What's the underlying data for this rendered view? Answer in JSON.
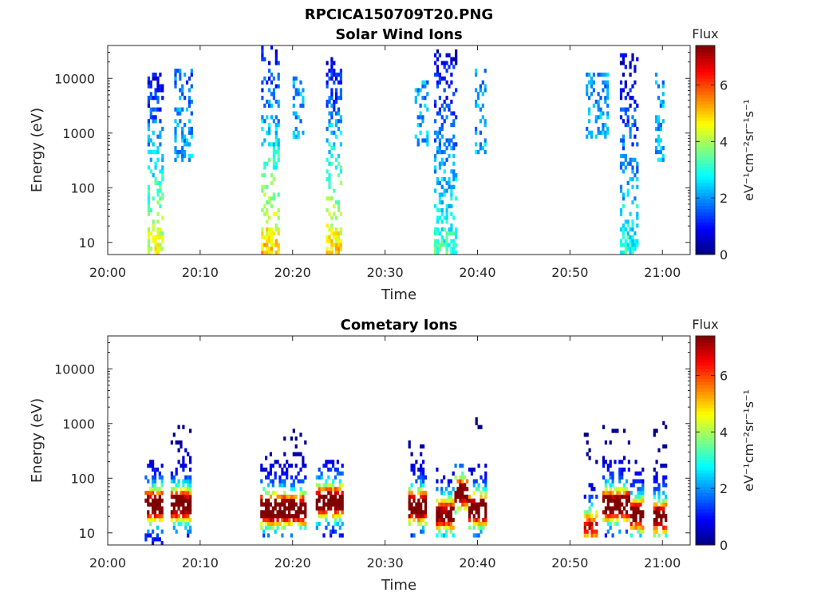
{
  "figure_title": "RPCICA150709T20.PNG",
  "chart_data": [
    {
      "type": "heatmap",
      "title": "Solar Wind Ions",
      "xlabel": "Time",
      "ylabel": "Energy (eV)",
      "x_range_minutes": [
        0,
        63
      ],
      "x_ticks": [
        {
          "label": "20:00",
          "value": 0
        },
        {
          "label": "20:10",
          "value": 10
        },
        {
          "label": "20:20",
          "value": 20
        },
        {
          "label": "20:30",
          "value": 30
        },
        {
          "label": "20:40",
          "value": 40
        },
        {
          "label": "20:50",
          "value": 50
        },
        {
          "label": "21:00",
          "value": 60
        }
      ],
      "y_scale": "log",
      "ylim": [
        6,
        40000
      ],
      "y_ticks": [
        {
          "label": "10",
          "value": 10
        },
        {
          "label": "100",
          "value": 100
        },
        {
          "label": "1000",
          "value": 1000
        },
        {
          "label": "10000",
          "value": 10000
        }
      ],
      "colorbar": {
        "title": "Flux",
        "unit": "eV⁻¹cm⁻²sr⁻¹s⁻¹",
        "range": [
          0,
          7.4
        ],
        "ticks": [
          "0",
          "2",
          "4",
          "6"
        ],
        "colormap": "jet"
      },
      "bursts": [
        {
          "t0": 4.3,
          "t1": 6.0,
          "e_min": 6,
          "e_max": 12000,
          "value_low": 4.5,
          "value_high": 0.6
        },
        {
          "t0": 7.2,
          "t1": 9.0,
          "e_min": 300,
          "e_max": 15000,
          "value_low": 2.2,
          "value_high": 1.6
        },
        {
          "t0": 16.6,
          "t1": 18.6,
          "e_min": 6,
          "e_max": 40000,
          "value_low": 5.0,
          "value_high": 0.6
        },
        {
          "t0": 20.0,
          "t1": 21.2,
          "e_min": 700,
          "e_max": 10000,
          "value_low": 2.2,
          "value_high": 2.0
        },
        {
          "t0": 23.6,
          "t1": 25.2,
          "e_min": 6,
          "e_max": 22000,
          "value_low": 5.0,
          "value_high": 0.6
        },
        {
          "t0": 33.2,
          "t1": 34.6,
          "e_min": 500,
          "e_max": 8000,
          "value_low": 2.2,
          "value_high": 2.0
        },
        {
          "t0": 35.3,
          "t1": 37.8,
          "e_min": 6,
          "e_max": 30000,
          "value_low": 3.2,
          "value_high": 0.6
        },
        {
          "t0": 39.7,
          "t1": 40.8,
          "e_min": 400,
          "e_max": 15000,
          "value_low": 2.2,
          "value_high": 2.0
        },
        {
          "t0": 51.7,
          "t1": 54.0,
          "e_min": 700,
          "e_max": 12000,
          "value_low": 2.2,
          "value_high": 2.0
        },
        {
          "t0": 55.4,
          "t1": 57.2,
          "e_min": 6,
          "e_max": 25000,
          "value_low": 3.0,
          "value_high": 0.6
        },
        {
          "t0": 59.2,
          "t1": 60.1,
          "e_min": 300,
          "e_max": 12000,
          "value_low": 2.2,
          "value_high": 2.0
        }
      ]
    },
    {
      "type": "heatmap",
      "title": "Cometary Ions",
      "xlabel": "Time",
      "ylabel": "Energy (eV)",
      "x_range_minutes": [
        0,
        63
      ],
      "x_ticks": [
        {
          "label": "20:00",
          "value": 0
        },
        {
          "label": "20:10",
          "value": 10
        },
        {
          "label": "20:20",
          "value": 20
        },
        {
          "label": "20:30",
          "value": 30
        },
        {
          "label": "20:40",
          "value": 40
        },
        {
          "label": "20:50",
          "value": 50
        },
        {
          "label": "21:00",
          "value": 60
        }
      ],
      "y_scale": "log",
      "ylim": [
        6,
        40000
      ],
      "y_ticks": [
        {
          "label": "10",
          "value": 10
        },
        {
          "label": "100",
          "value": 100
        },
        {
          "label": "1000",
          "value": 1000
        },
        {
          "label": "10000",
          "value": 10000
        }
      ],
      "colorbar": {
        "title": "Flux",
        "unit": "eV⁻¹cm⁻²sr⁻¹s⁻¹",
        "range": [
          0,
          7.4
        ],
        "ticks": [
          "0",
          "2",
          "4",
          "6"
        ],
        "colormap": "jet"
      },
      "bursts": [
        {
          "t0": 4.0,
          "t1": 6.0,
          "e_min": 6,
          "e_max": 200,
          "peak_energy": 30,
          "peak_value": 7.0
        },
        {
          "t0": 6.8,
          "t1": 9.0,
          "e_min": 8,
          "e_max": 1000,
          "peak_energy": 30,
          "peak_value": 6.8
        },
        {
          "t0": 16.5,
          "t1": 19.0,
          "e_min": 8,
          "e_max": 300,
          "peak_energy": 25,
          "peak_value": 7.2
        },
        {
          "t0": 19.0,
          "t1": 21.5,
          "e_min": 8,
          "e_max": 900,
          "peak_energy": 25,
          "peak_value": 7.2
        },
        {
          "t0": 22.5,
          "t1": 25.5,
          "e_min": 8,
          "e_max": 200,
          "peak_energy": 35,
          "peak_value": 6.8
        },
        {
          "t0": 32.5,
          "t1": 34.5,
          "e_min": 8,
          "e_max": 500,
          "peak_energy": 28,
          "peak_value": 7.0
        },
        {
          "t0": 35.5,
          "t1": 37.5,
          "e_min": 8,
          "e_max": 150,
          "peak_energy": 20,
          "peak_value": 6.0
        },
        {
          "t0": 37.5,
          "t1": 39.0,
          "e_min": 20,
          "e_max": 180,
          "peak_energy": 50,
          "peak_value": 6.5
        },
        {
          "t0": 39.0,
          "t1": 41.0,
          "e_min": 8,
          "e_max": 1300,
          "peak_energy": 25,
          "peak_value": 7.0
        },
        {
          "t0": 51.5,
          "t1": 53.0,
          "e_min": 8,
          "e_max": 1000,
          "peak_energy": 12,
          "peak_value": 5.0
        },
        {
          "t0": 53.5,
          "t1": 56.5,
          "e_min": 8,
          "e_max": 900,
          "peak_energy": 30,
          "peak_value": 7.0
        },
        {
          "t0": 56.5,
          "t1": 58.0,
          "e_min": 8,
          "e_max": 250,
          "peak_energy": 20,
          "peak_value": 6.5
        },
        {
          "t0": 59.0,
          "t1": 60.5,
          "e_min": 8,
          "e_max": 1200,
          "peak_energy": 18,
          "peak_value": 6.5
        }
      ]
    }
  ]
}
